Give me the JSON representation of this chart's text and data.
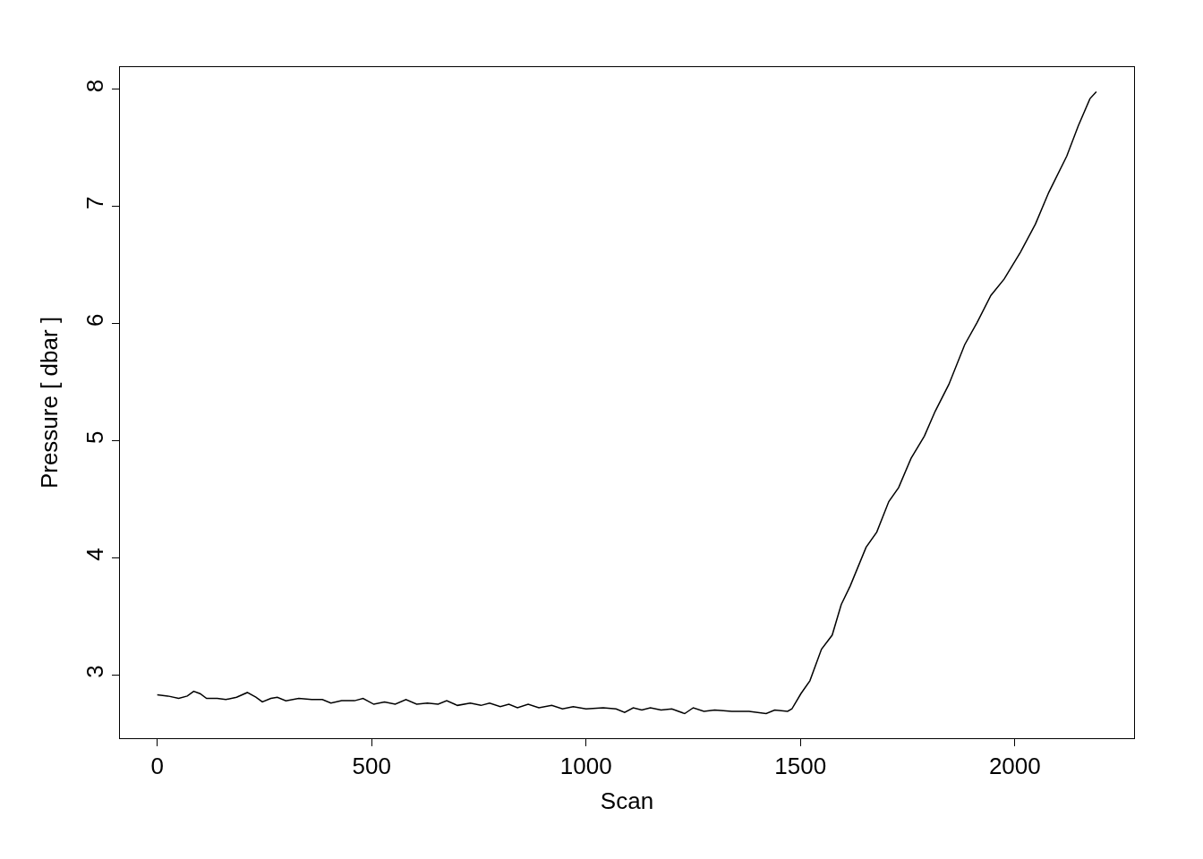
{
  "chart_data": {
    "type": "line",
    "xlabel": "Scan",
    "ylabel": "Pressure [ dbar ]",
    "x": [
      0,
      25,
      50,
      70,
      85,
      100,
      115,
      140,
      160,
      185,
      210,
      230,
      245,
      265,
      280,
      300,
      330,
      360,
      385,
      405,
      430,
      460,
      480,
      505,
      530,
      555,
      580,
      605,
      630,
      655,
      675,
      700,
      730,
      755,
      775,
      800,
      820,
      840,
      865,
      890,
      920,
      945,
      970,
      1000,
      1040,
      1070,
      1090,
      1110,
      1130,
      1150,
      1175,
      1200,
      1230,
      1250,
      1275,
      1300,
      1340,
      1380,
      1420,
      1440,
      1470,
      1480,
      1501,
      1522,
      1549,
      1574,
      1595,
      1616,
      1653,
      1678,
      1706,
      1729,
      1758,
      1789,
      1814,
      1846,
      1883,
      1912,
      1944,
      1975,
      2013,
      2048,
      2079,
      2121,
      2148,
      2175,
      2190
    ],
    "series": [
      {
        "color": "#000000",
        "values": [
          2.83,
          2.82,
          2.8,
          2.82,
          2.86,
          2.84,
          2.8,
          2.8,
          2.79,
          2.81,
          2.85,
          2.81,
          2.77,
          2.8,
          2.81,
          2.78,
          2.8,
          2.79,
          2.79,
          2.76,
          2.78,
          2.78,
          2.8,
          2.75,
          2.77,
          2.75,
          2.79,
          2.75,
          2.76,
          2.75,
          2.78,
          2.74,
          2.76,
          2.74,
          2.76,
          2.73,
          2.75,
          2.72,
          2.75,
          2.72,
          2.74,
          2.71,
          2.73,
          2.71,
          2.72,
          2.71,
          2.68,
          2.72,
          2.7,
          2.72,
          2.7,
          2.71,
          2.67,
          2.72,
          2.69,
          2.7,
          2.69,
          2.69,
          2.67,
          2.7,
          2.69,
          2.71,
          2.84,
          2.95,
          3.22,
          3.34,
          3.6,
          3.76,
          4.09,
          4.22,
          4.48,
          4.6,
          4.85,
          5.04,
          5.25,
          5.48,
          5.82,
          6.01,
          6.24,
          6.38,
          6.61,
          6.85,
          7.12,
          7.43,
          7.69,
          7.92,
          7.98
        ]
      }
    ],
    "xlim": [
      -87,
      2278
    ],
    "ylim": [
      2.46,
      8.19
    ],
    "xticks": [
      0,
      500,
      1000,
      1500,
      2000
    ],
    "yticks": [
      3,
      4,
      5,
      6,
      7,
      8
    ],
    "marker": "none",
    "line_style": "solid"
  }
}
